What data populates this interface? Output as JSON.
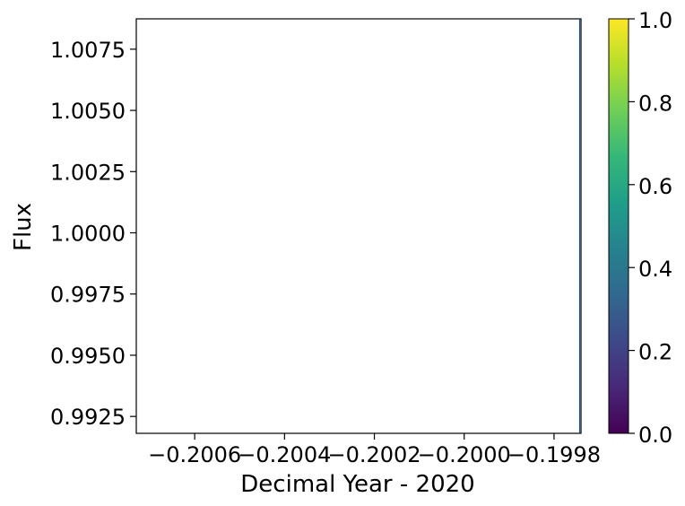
{
  "chart_data": {
    "type": "scatter",
    "xlabel": "Decimal Year - 2020",
    "ylabel": "Flux",
    "xlim": [
      -0.20073,
      -0.19974
    ],
    "ylim": [
      0.99181,
      1.00874
    ],
    "xticks": [
      {
        "value": -0.2006,
        "label": "−0.2006"
      },
      {
        "value": -0.2004,
        "label": "−0.2004"
      },
      {
        "value": -0.2002,
        "label": "−0.2002"
      },
      {
        "value": -0.2,
        "label": "−0.2000"
      },
      {
        "value": -0.1998,
        "label": "−0.1998"
      }
    ],
    "yticks": [
      {
        "value": 0.9925,
        "label": "0.9925"
      },
      {
        "value": 0.995,
        "label": "0.9950"
      },
      {
        "value": 0.9975,
        "label": "0.9975"
      },
      {
        "value": 1.0,
        "label": "1.0000"
      },
      {
        "value": 1.0025,
        "label": "1.0025"
      },
      {
        "value": 1.005,
        "label": "1.0050"
      },
      {
        "value": 1.0075,
        "label": "1.0075"
      }
    ],
    "grid": false,
    "points": [],
    "colorbar": {
      "colormap": "viridis",
      "range": [
        0.0,
        1.0
      ],
      "ticks": [
        {
          "value": 0.0,
          "label": "0.0"
        },
        {
          "value": 0.2,
          "label": "0.2"
        },
        {
          "value": 0.4,
          "label": "0.4"
        },
        {
          "value": 0.6,
          "label": "0.6"
        },
        {
          "value": 0.8,
          "label": "0.8"
        },
        {
          "value": 1.0,
          "label": "1.0"
        }
      ],
      "stops": [
        "#440154",
        "#482878",
        "#3e4989",
        "#31688e",
        "#26828e",
        "#1f9e89",
        "#35b779",
        "#6ece58",
        "#b5de2b",
        "#fde725"
      ]
    }
  }
}
